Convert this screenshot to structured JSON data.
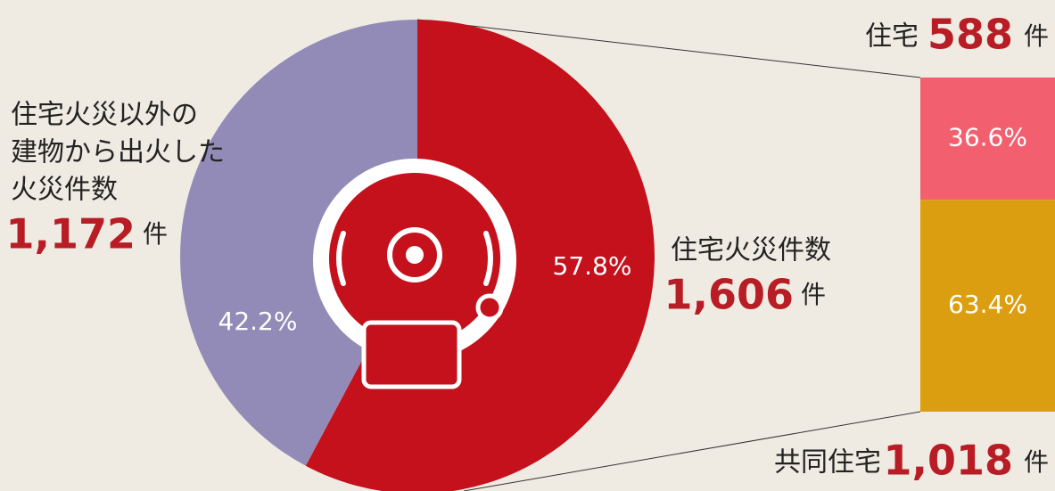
{
  "chart_data": [
    {
      "type": "pie",
      "categories": [
        [
          "住宅火災件数"
        ],
        [
          "住宅火災以外の",
          "建物から出火した",
          "火災件数"
        ]
      ],
      "values": [
        57.8,
        42.2
      ],
      "value_labels": [
        "57.8%",
        "42.2%"
      ],
      "counts": [
        1606,
        1172
      ],
      "count_labels": [
        "1,606",
        "1,172"
      ],
      "unit": "件",
      "colors": [
        "#c4111b",
        "#938bb7"
      ]
    },
    {
      "type": "bar",
      "categories": [
        "住宅",
        "共同住宅"
      ],
      "values": [
        36.6,
        63.4
      ],
      "value_labels": [
        "36.6%",
        "63.4%"
      ],
      "counts": [
        588,
        1018
      ],
      "count_labels": [
        "588",
        "1,018"
      ],
      "unit": "件",
      "colors": [
        "#f2606f",
        "#dc9e11"
      ]
    }
  ]
}
